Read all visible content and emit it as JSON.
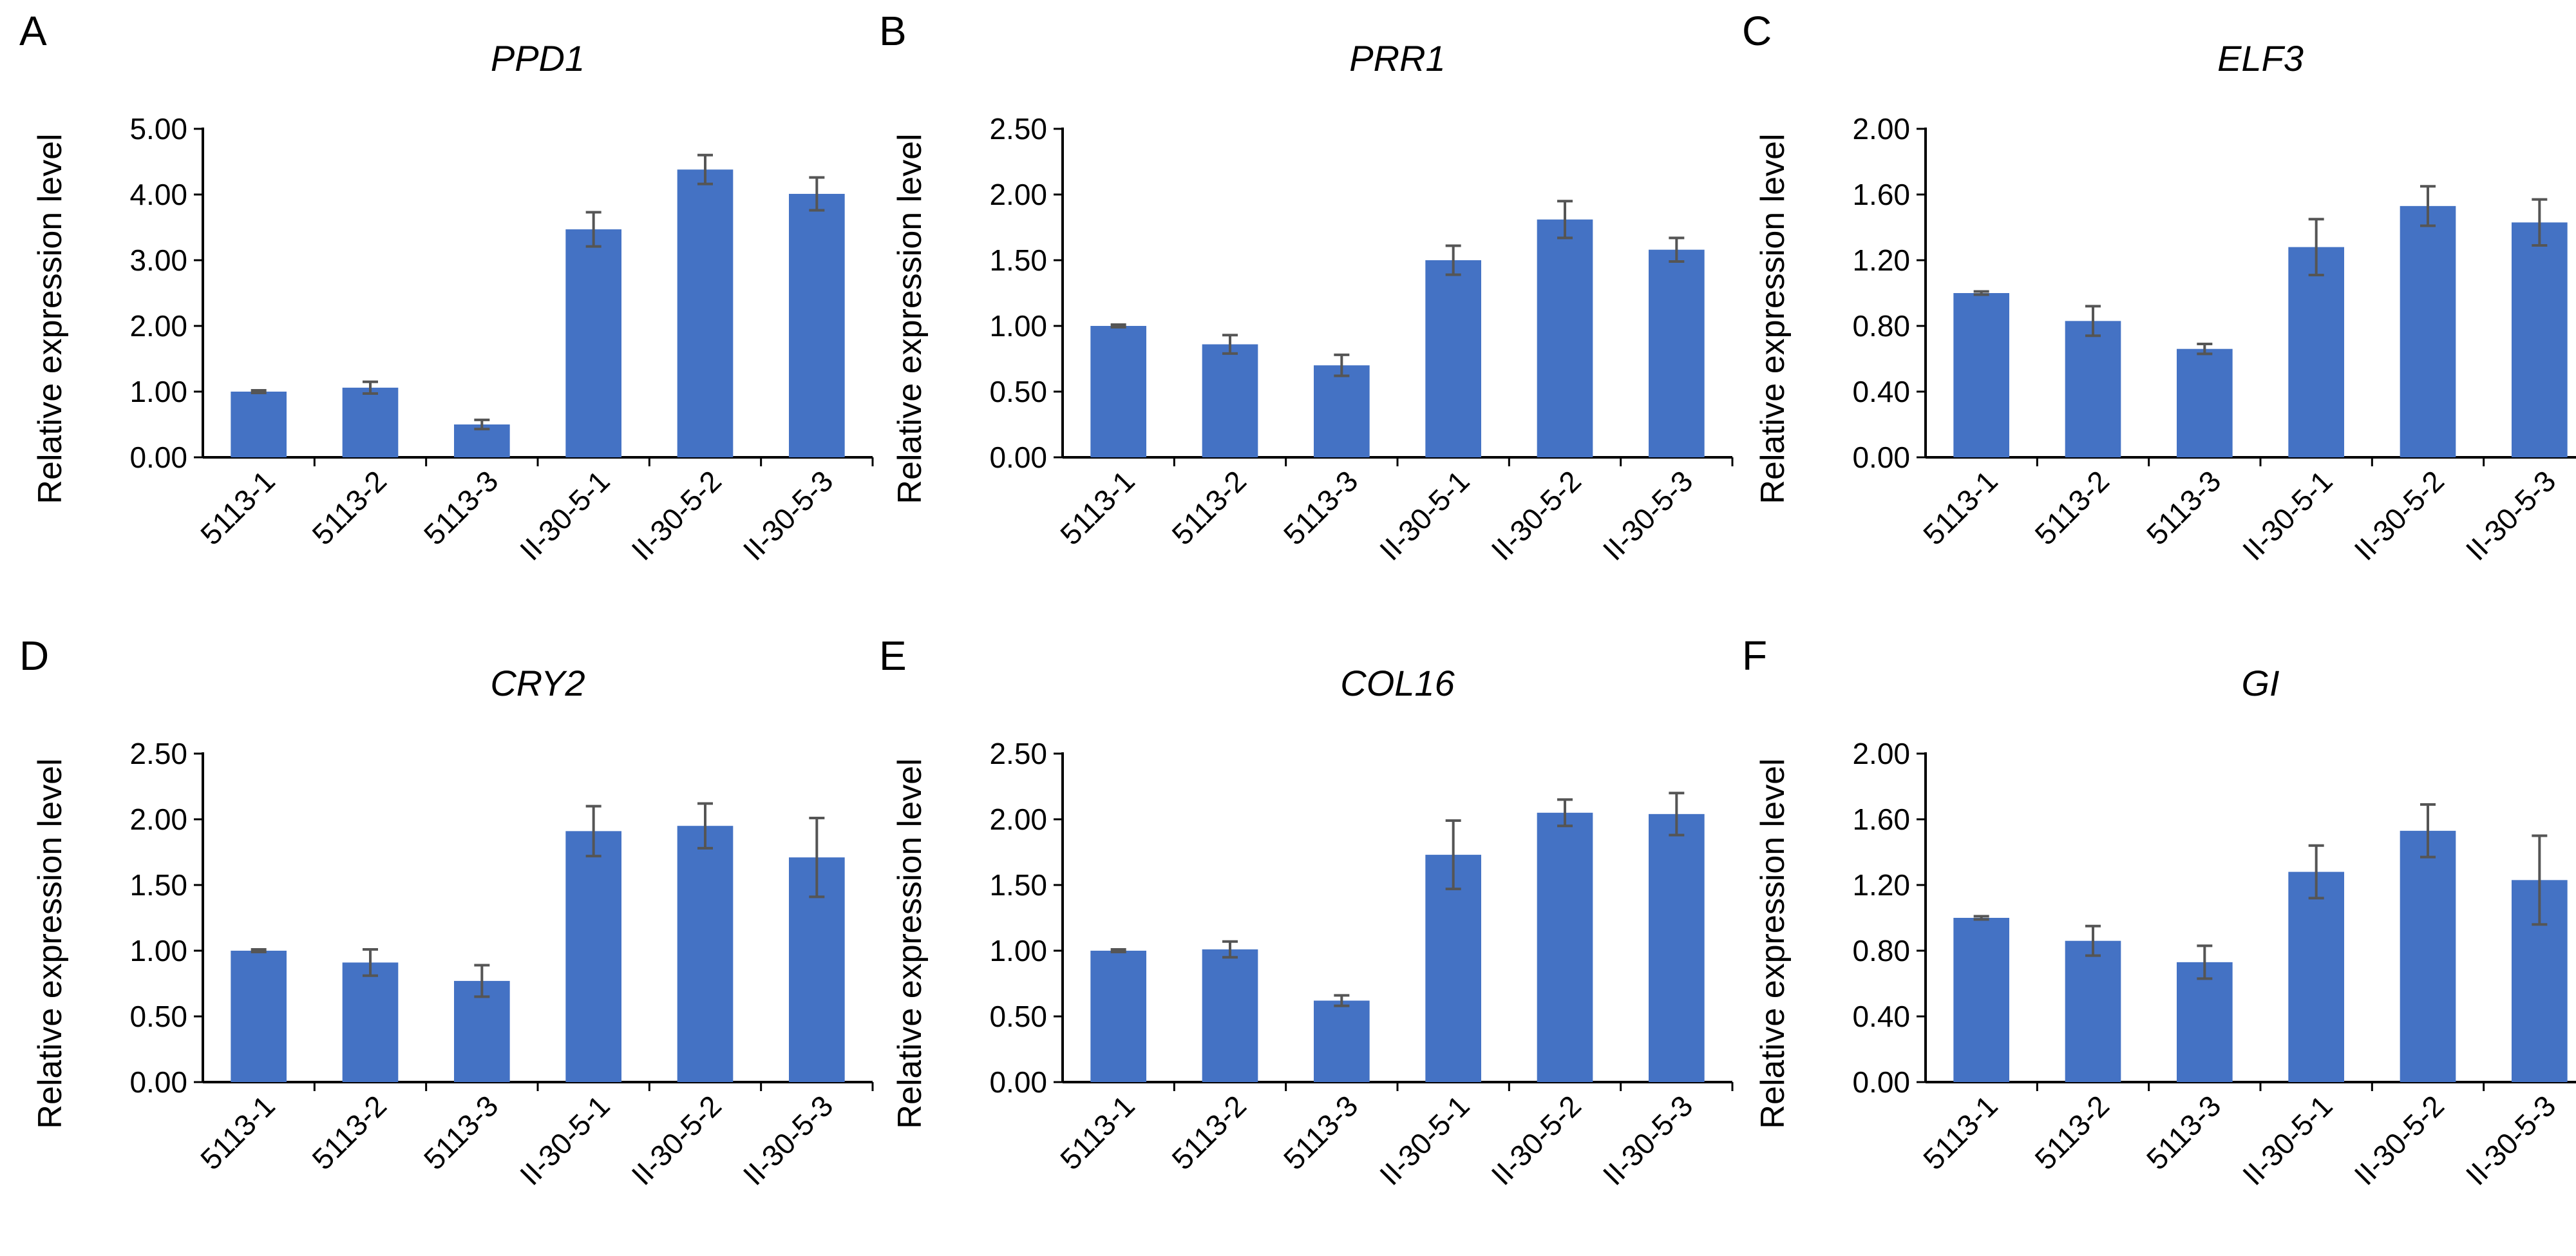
{
  "colors": {
    "bar": "#4472C4",
    "error_bar": "#555555",
    "axis": "#000000"
  },
  "chart_data": [
    {
      "panel": "A",
      "type": "bar",
      "title": "PPD1",
      "ylabel": "Relative expression level",
      "categories": [
        "5113-1",
        "5113-2",
        "5113-3",
        "II-30-5-1",
        "II-30-5-2",
        "II-30-5-3"
      ],
      "values": [
        1.0,
        1.06,
        0.5,
        3.47,
        4.38,
        4.01
      ],
      "errors": [
        0.02,
        0.09,
        0.07,
        0.26,
        0.22,
        0.25
      ],
      "ylim": [
        0,
        5
      ],
      "yticks": [
        "0.00",
        "1.00",
        "2.00",
        "3.00",
        "4.00",
        "5.00"
      ]
    },
    {
      "panel": "B",
      "type": "bar",
      "title": "PRR1",
      "ylabel": "Relative expression level",
      "categories": [
        "5113-1",
        "5113-2",
        "5113-3",
        "II-30-5-1",
        "II-30-5-2",
        "II-30-5-3"
      ],
      "values": [
        1.0,
        0.86,
        0.7,
        1.5,
        1.81,
        1.58
      ],
      "errors": [
        0.01,
        0.07,
        0.08,
        0.11,
        0.14,
        0.09
      ],
      "ylim": [
        0,
        2.5
      ],
      "yticks": [
        "0.00",
        "0.50",
        "1.00",
        "1.50",
        "2.00",
        "2.50"
      ]
    },
    {
      "panel": "C",
      "type": "bar",
      "title": "ELF3",
      "ylabel": "Relative expression level",
      "categories": [
        "5113-1",
        "5113-2",
        "5113-3",
        "II-30-5-1",
        "II-30-5-2",
        "II-30-5-3"
      ],
      "values": [
        1.0,
        0.83,
        0.66,
        1.28,
        1.53,
        1.43
      ],
      "errors": [
        0.01,
        0.09,
        0.03,
        0.17,
        0.12,
        0.14
      ],
      "ylim": [
        0,
        2
      ],
      "yticks": [
        "0.00",
        "0.40",
        "0.80",
        "1.20",
        "1.60",
        "2.00"
      ]
    },
    {
      "panel": "D",
      "type": "bar",
      "title": "CRY2",
      "ylabel": "Relative expression level",
      "categories": [
        "5113-1",
        "5113-2",
        "5113-3",
        "II-30-5-1",
        "II-30-5-2",
        "II-30-5-3"
      ],
      "values": [
        1.0,
        0.91,
        0.77,
        1.91,
        1.95,
        1.71
      ],
      "errors": [
        0.01,
        0.1,
        0.12,
        0.19,
        0.17,
        0.3
      ],
      "ylim": [
        0,
        2.5
      ],
      "yticks": [
        "0.00",
        "0.50",
        "1.00",
        "1.50",
        "2.00",
        "2.50"
      ]
    },
    {
      "panel": "E",
      "type": "bar",
      "title": "COL16",
      "ylabel": "Relative expression level",
      "categories": [
        "5113-1",
        "5113-2",
        "5113-3",
        "II-30-5-1",
        "II-30-5-2",
        "II-30-5-3"
      ],
      "values": [
        1.0,
        1.01,
        0.62,
        1.73,
        2.05,
        2.04
      ],
      "errors": [
        0.01,
        0.06,
        0.04,
        0.26,
        0.1,
        0.16
      ],
      "ylim": [
        0,
        2.5
      ],
      "yticks": [
        "0.00",
        "0.50",
        "1.00",
        "1.50",
        "2.00",
        "2.50"
      ]
    },
    {
      "panel": "F",
      "type": "bar",
      "title": "GI",
      "ylabel": "Relative expression level",
      "categories": [
        "5113-1",
        "5113-2",
        "5113-3",
        "II-30-5-1",
        "II-30-5-2",
        "II-30-5-3"
      ],
      "values": [
        1.0,
        0.86,
        0.73,
        1.28,
        1.53,
        1.23
      ],
      "errors": [
        0.01,
        0.09,
        0.1,
        0.16,
        0.16,
        0.27
      ],
      "ylim": [
        0,
        2
      ],
      "yticks": [
        "0.00",
        "0.40",
        "0.80",
        "1.20",
        "1.60",
        "2.00"
      ]
    }
  ]
}
